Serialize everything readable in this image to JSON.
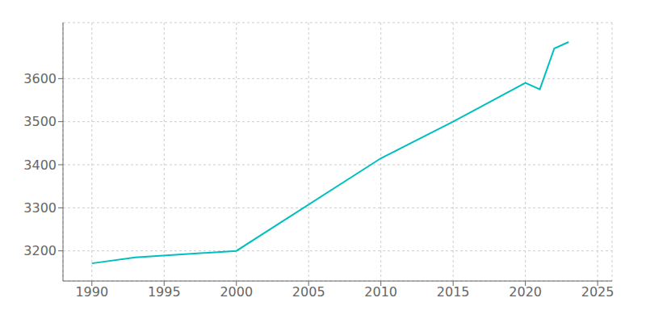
{
  "chart_data": {
    "type": "line",
    "x": [
      1990,
      1993,
      2000,
      2010,
      2015,
      2020,
      2021,
      2022,
      2023
    ],
    "values": [
      3171,
      3185,
      3200,
      3415,
      3500,
      3590,
      3575,
      3670,
      3685
    ],
    "color": "#00BFBF",
    "xlim": [
      1988,
      2026
    ],
    "ylim": [
      3130,
      3730
    ],
    "xticks": [
      1990,
      1995,
      2000,
      2005,
      2010,
      2015,
      2020,
      2025
    ],
    "yticks": [
      3200,
      3300,
      3400,
      3500,
      3600
    ],
    "grid": true
  }
}
